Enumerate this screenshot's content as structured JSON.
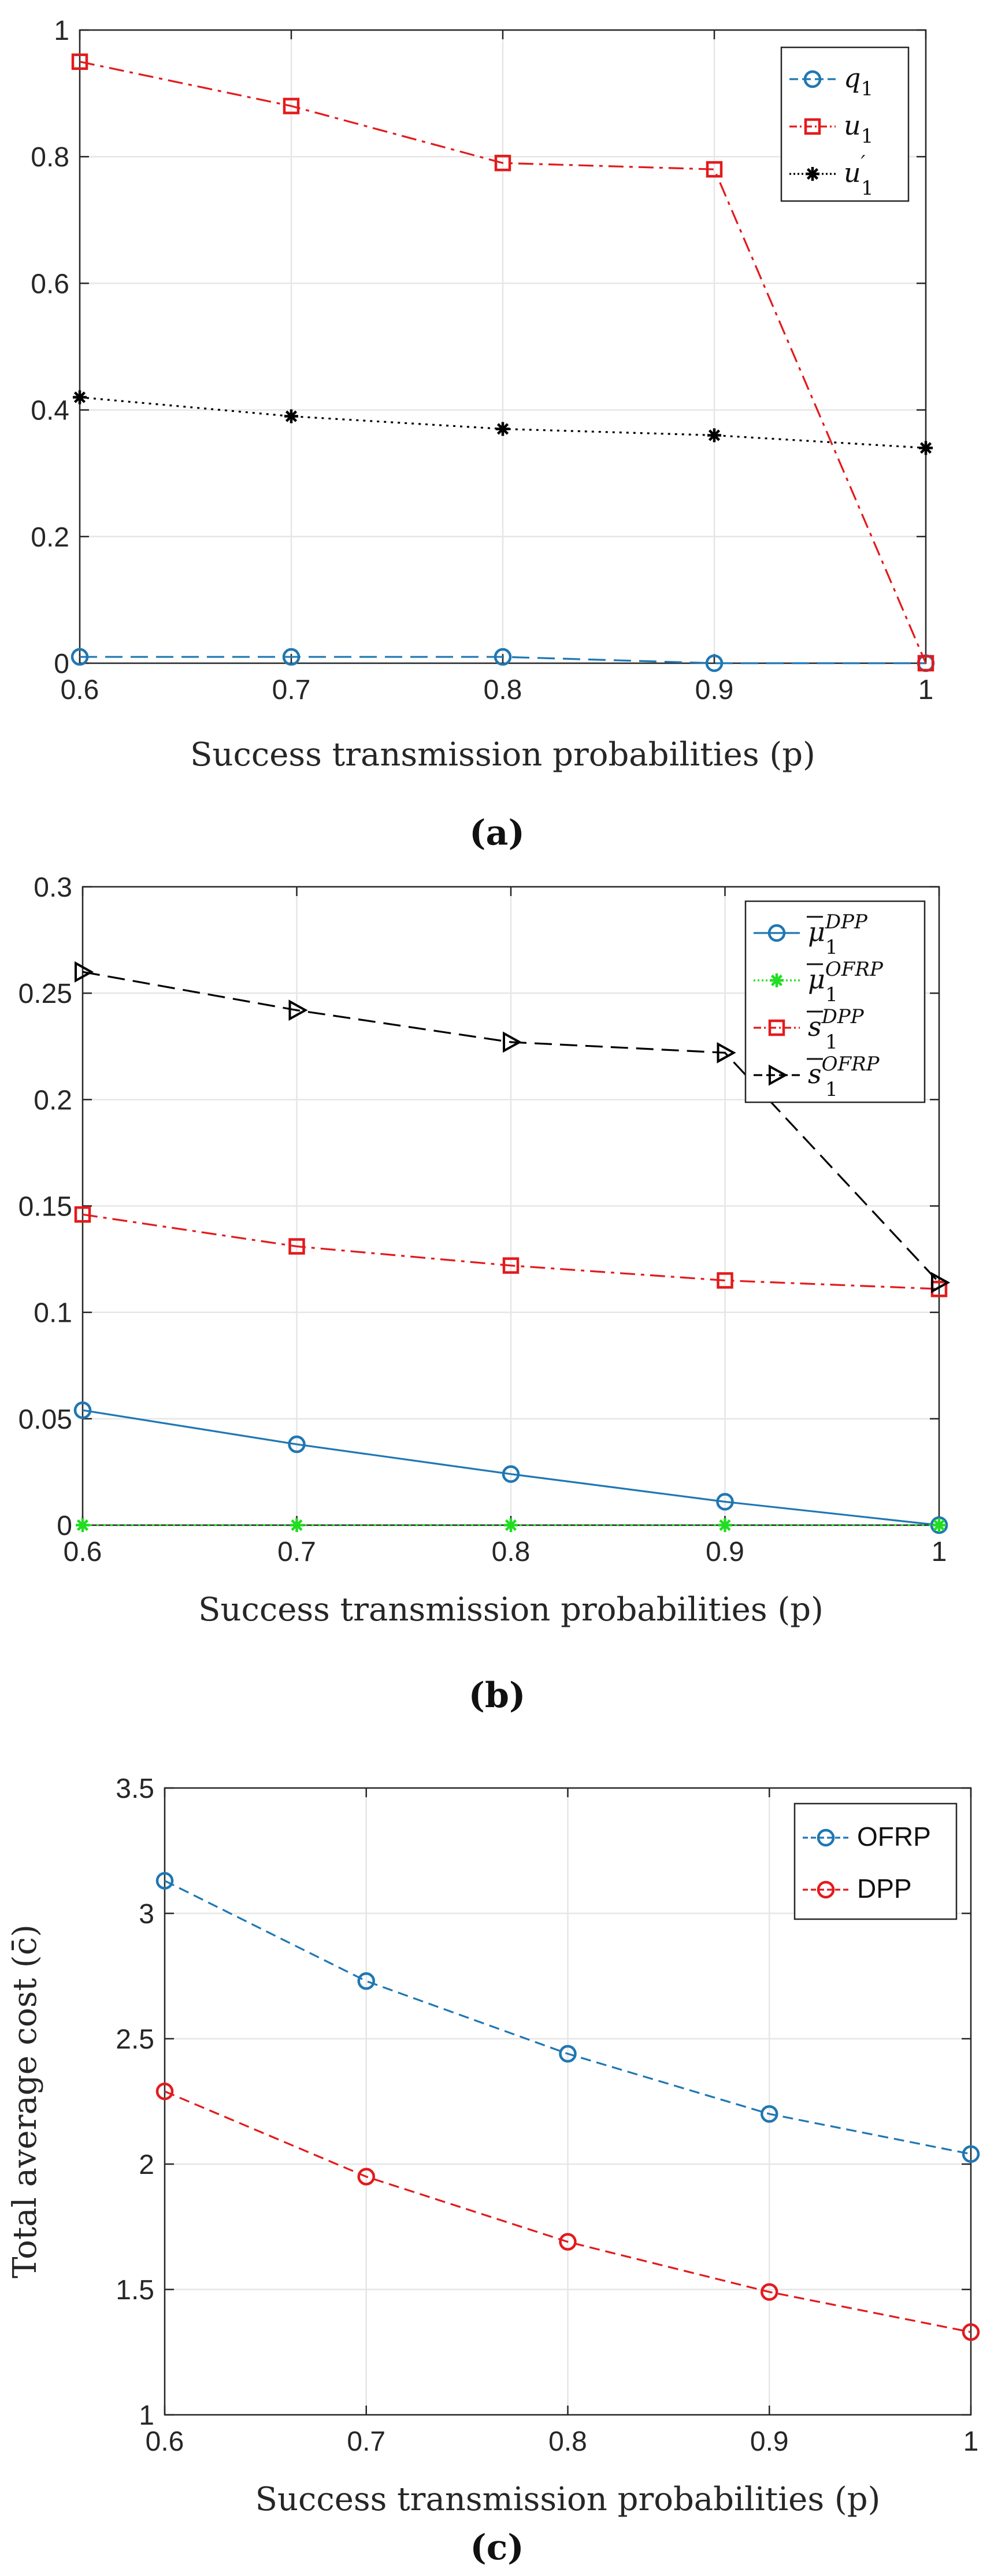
{
  "figure": {
    "captions": [
      "(a)",
      "(b)",
      "(c)"
    ]
  },
  "chart_data": [
    {
      "type": "line",
      "panel": "(a)",
      "title": "",
      "xlabel": "Success transmission probabilities (p)",
      "ylabel": "",
      "x": [
        0.6,
        0.7,
        0.8,
        0.9,
        1.0
      ],
      "xlim": [
        0.6,
        1.0
      ],
      "ylim": [
        0,
        1
      ],
      "xticks": [
        "0.6",
        "0.7",
        "0.8",
        "0.9",
        "1"
      ],
      "yticks": [
        "0",
        "0.2",
        "0.4",
        "0.6",
        "0.8",
        "1"
      ],
      "grid": true,
      "legend_position": "top-right",
      "series": [
        {
          "name": "q1",
          "label_main": "q",
          "label_sub": "1",
          "label_sup": "",
          "color": "#1f77b4",
          "dash": "30 14",
          "marker": "circle",
          "values": [
            0.01,
            0.01,
            0.01,
            0.0,
            0.0
          ]
        },
        {
          "name": "u1",
          "label_main": "u",
          "label_sub": "1",
          "label_sup": "",
          "color": "#e31a1c",
          "dash": "26 10 6 10",
          "marker": "square",
          "values": [
            0.95,
            0.88,
            0.79,
            0.78,
            0.0
          ]
        },
        {
          "name": "u'1",
          "label_main": "u",
          "label_sub": "1",
          "label_sup": "′",
          "color": "#000000",
          "dash": "4 8",
          "marker": "asterisk",
          "values": [
            0.42,
            0.39,
            0.37,
            0.36,
            0.34
          ]
        }
      ]
    },
    {
      "type": "line",
      "panel": "(b)",
      "title": "",
      "xlabel": "Success transmission probabilities (p)",
      "ylabel": "",
      "x": [
        0.6,
        0.7,
        0.8,
        0.9,
        1.0
      ],
      "xlim": [
        0.6,
        1.0
      ],
      "ylim": [
        0,
        0.3
      ],
      "xticks": [
        "0.6",
        "0.7",
        "0.8",
        "0.9",
        "1"
      ],
      "yticks": [
        "0",
        "0.05",
        "0.1",
        "0.15",
        "0.2",
        "0.25",
        "0.3"
      ],
      "grid": true,
      "legend_position": "top-right",
      "series": [
        {
          "name": "mu1 DPP",
          "label_main": "μ",
          "label_sub": "1",
          "label_sup": "DPP",
          "color": "#1f77b4",
          "dash": "",
          "marker": "circle",
          "values": [
            0.054,
            0.038,
            0.024,
            0.011,
            0.0
          ]
        },
        {
          "name": "mu1 OFRP",
          "label_main": "μ",
          "label_sub": "1",
          "label_sup": "OFRP",
          "color": "#22dd22",
          "dash": "4 8",
          "marker": "asterisk",
          "values": [
            0.0,
            0.0,
            0.0,
            0.0,
            0.0
          ]
        },
        {
          "name": "s1 DPP",
          "label_main": "s",
          "label_sub": "1",
          "label_sup": "DPP",
          "color": "#e31a1c",
          "dash": "26 10 6 10",
          "marker": "square",
          "values": [
            0.146,
            0.131,
            0.122,
            0.115,
            0.111
          ]
        },
        {
          "name": "s1 OFRP",
          "label_main": "s",
          "label_sub": "1",
          "label_sup": "OFRP",
          "color": "#000000",
          "dash": "30 14",
          "marker": "triangle-right",
          "values": [
            0.26,
            0.242,
            0.227,
            0.222,
            0.114
          ]
        }
      ]
    },
    {
      "type": "line",
      "panel": "(c)",
      "title": "",
      "xlabel": "Success transmission probabilities (p)",
      "ylabel": "Total average cost (c̄)",
      "x": [
        0.6,
        0.7,
        0.8,
        0.9,
        1.0
      ],
      "xlim": [
        0.6,
        1.0
      ],
      "ylim": [
        1,
        3.5
      ],
      "xticks": [
        "0.6",
        "0.7",
        "0.8",
        "0.9",
        "1"
      ],
      "yticks": [
        "1",
        "1.5",
        "2",
        "2.5",
        "3",
        "3.5"
      ],
      "grid": true,
      "legend_position": "top-right",
      "series": [
        {
          "name": "OFRP",
          "label_main": "OFRP",
          "label_sub": "",
          "label_sup": "",
          "color": "#1f77b4",
          "dash": "18 10",
          "marker": "circle",
          "values": [
            3.13,
            2.73,
            2.44,
            2.2,
            2.04
          ]
        },
        {
          "name": "DPP",
          "label_main": "DPP",
          "label_sub": "",
          "label_sup": "",
          "color": "#e31a1c",
          "dash": "18 10",
          "marker": "circle",
          "values": [
            2.29,
            1.95,
            1.69,
            1.49,
            1.33
          ]
        }
      ]
    }
  ]
}
